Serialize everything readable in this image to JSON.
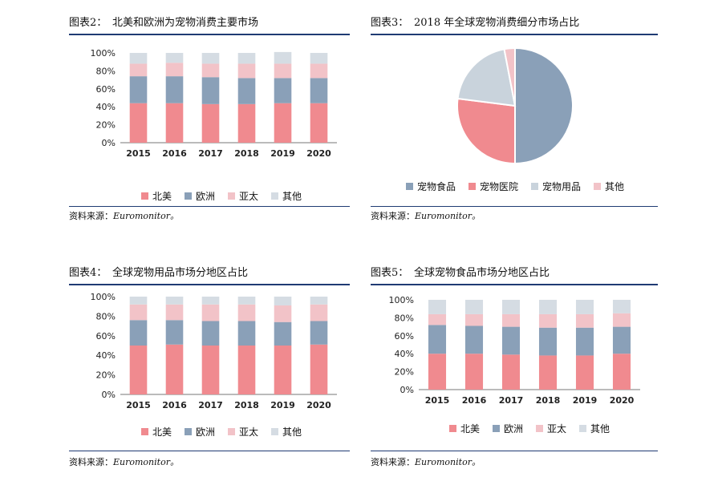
{
  "colors": {
    "north_america": "#f08a8f",
    "europe": "#8aa0b8",
    "asia_pacific": "#f2c3c8",
    "other": "#d5dce3",
    "pet_food": "#8aa0b8",
    "pet_hospital": "#f08a8f",
    "pet_supplies": "#c9d3dc",
    "pie_other": "#f2c3c8",
    "rule": "#1f3b73"
  },
  "source_text": "资料来源：",
  "source_name": "Euromonitor。",
  "panels": [
    {
      "num": "图表2：",
      "title": "北美和欧洲为宠物消费主要市场",
      "legend": [
        "北美",
        "欧洲",
        "亚太",
        "其他"
      ]
    },
    {
      "num": "图表3：",
      "title": "2018 年全球宠物消费细分市场占比",
      "legend": [
        "宠物食品",
        "宠物医院",
        "宠物用品",
        "其他"
      ]
    },
    {
      "num": "图表4：",
      "title": "全球宠物用品市场分地区占比",
      "legend": [
        "北美",
        "欧洲",
        "亚太",
        "其他"
      ]
    },
    {
      "num": "图表5：",
      "title": "全球宠物食品市场分地区占比",
      "legend": [
        "北美",
        "欧洲",
        "亚太",
        "其他"
      ]
    }
  ],
  "chart_data": [
    {
      "type": "bar",
      "stacked": true,
      "categories": [
        "2015",
        "2016",
        "2017",
        "2018",
        "2019",
        "2020"
      ],
      "y_ticks": [
        "0%",
        "20%",
        "40%",
        "60%",
        "80%",
        "100%"
      ],
      "ylim": [
        0,
        100
      ],
      "series": [
        {
          "name": "北美",
          "values": [
            44,
            44,
            43,
            43,
            44,
            44
          ]
        },
        {
          "name": "欧洲",
          "values": [
            30,
            30,
            30,
            29,
            28,
            28
          ]
        },
        {
          "name": "亚太",
          "values": [
            14,
            15,
            15,
            16,
            16,
            16
          ]
        },
        {
          "name": "其他",
          "values": [
            12,
            11,
            12,
            12,
            13,
            12
          ]
        }
      ],
      "legend_position": "bottom"
    },
    {
      "type": "pie",
      "labels": [
        "宠物食品",
        "宠物医院",
        "宠物用品",
        "其他"
      ],
      "values": [
        50,
        27,
        20,
        3
      ],
      "legend_position": "bottom"
    },
    {
      "type": "bar",
      "stacked": true,
      "categories": [
        "2015",
        "2016",
        "2017",
        "2018",
        "2019",
        "2020"
      ],
      "y_ticks": [
        "0%",
        "20%",
        "40%",
        "60%",
        "80%",
        "100%"
      ],
      "ylim": [
        0,
        100
      ],
      "series": [
        {
          "name": "北美",
          "values": [
            50,
            51,
            50,
            50,
            50,
            51
          ]
        },
        {
          "name": "欧洲",
          "values": [
            26,
            25,
            25,
            25,
            24,
            24
          ]
        },
        {
          "name": "亚太",
          "values": [
            16,
            16,
            17,
            17,
            17,
            17
          ]
        },
        {
          "name": "其他",
          "values": [
            8,
            8,
            8,
            8,
            9,
            8
          ]
        }
      ],
      "legend_position": "bottom"
    },
    {
      "type": "bar",
      "stacked": true,
      "categories": [
        "2015",
        "2016",
        "2017",
        "2018",
        "2019",
        "2020"
      ],
      "y_ticks": [
        "0%",
        "20%",
        "40%",
        "60%",
        "80%",
        "100%"
      ],
      "ylim": [
        0,
        100
      ],
      "series": [
        {
          "name": "北美",
          "values": [
            40,
            40,
            39,
            38,
            38,
            40
          ]
        },
        {
          "name": "欧洲",
          "values": [
            32,
            31,
            31,
            31,
            31,
            30
          ]
        },
        {
          "name": "亚太",
          "values": [
            12,
            13,
            14,
            15,
            15,
            15
          ]
        },
        {
          "name": "其他",
          "values": [
            16,
            16,
            16,
            16,
            16,
            15
          ]
        }
      ],
      "legend_position": "bottom"
    }
  ]
}
